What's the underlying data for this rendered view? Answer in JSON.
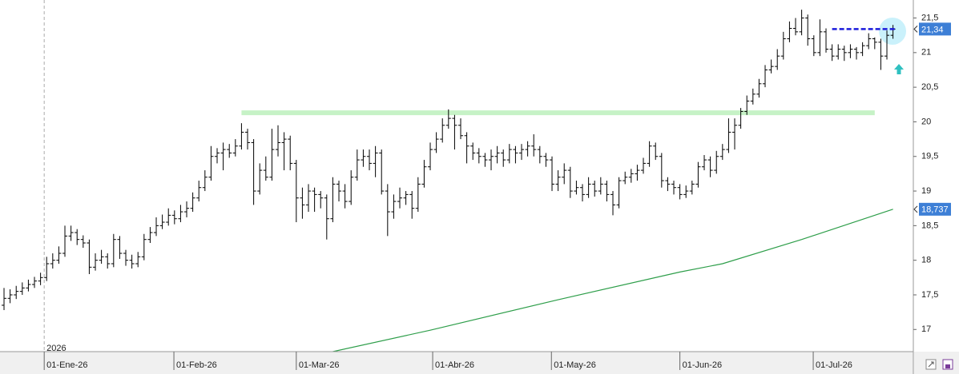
{
  "chart_data": {
    "type": "ohlc",
    "xlim": [
      -0.66,
      149.34
    ],
    "xticks": [
      {
        "value": 6.6,
        "label": "01-Ene-26"
      },
      {
        "value": 27.9,
        "label": "01-Feb-26"
      },
      {
        "value": 48,
        "label": "01-Mar-26"
      },
      {
        "value": 70.4,
        "label": "01-Abr-26"
      },
      {
        "value": 89.9,
        "label": "01-May-26"
      },
      {
        "value": 111,
        "label": "01-Jun-26"
      },
      {
        "value": 132.9,
        "label": "01-Jul-26"
      }
    ],
    "year_label": "2026",
    "ylim": [
      16.68,
      21.76
    ],
    "yticks": [
      17,
      {
        "value": 17.5,
        "label": "17,5"
      },
      18,
      {
        "value": 18.5,
        "label": "18,5"
      },
      19,
      {
        "value": 19.5,
        "label": "19,5"
      },
      20,
      {
        "value": 20.5,
        "label": "20,5"
      },
      21,
      {
        "value": 21.5,
        "label": "21,5"
      }
    ],
    "bar_color": "#000000",
    "bars": [
      [
        17.35,
        17.6,
        17.28,
        17.45
      ],
      [
        17.45,
        17.58,
        17.38,
        17.5
      ],
      [
        17.5,
        17.63,
        17.44,
        17.55
      ],
      [
        17.55,
        17.68,
        17.5,
        17.6
      ],
      [
        17.6,
        17.72,
        17.55,
        17.65
      ],
      [
        17.65,
        17.76,
        17.6,
        17.7
      ],
      [
        17.7,
        17.82,
        17.64,
        17.75
      ],
      [
        17.75,
        18.05,
        17.7,
        17.95
      ],
      [
        17.95,
        18.1,
        17.88,
        18.0
      ],
      [
        18.0,
        18.2,
        17.95,
        18.1
      ],
      [
        18.1,
        18.5,
        18.05,
        18.35
      ],
      [
        18.35,
        18.5,
        18.28,
        18.4
      ],
      [
        18.4,
        18.45,
        18.22,
        18.3
      ],
      [
        18.3,
        18.36,
        18.18,
        18.25
      ],
      [
        18.25,
        18.3,
        17.8,
        17.9
      ],
      [
        17.9,
        18.1,
        17.85,
        18.0
      ],
      [
        18.0,
        18.15,
        17.95,
        18.05
      ],
      [
        18.05,
        18.1,
        17.88,
        17.95
      ],
      [
        17.95,
        18.38,
        17.9,
        18.3
      ],
      [
        18.3,
        18.35,
        18.02,
        18.1
      ],
      [
        18.1,
        18.15,
        17.92,
        18.0
      ],
      [
        18.0,
        18.08,
        17.88,
        17.95
      ],
      [
        17.95,
        18.12,
        17.9,
        18.05
      ],
      [
        18.05,
        18.38,
        18.0,
        18.3
      ],
      [
        18.3,
        18.48,
        18.25,
        18.4
      ],
      [
        18.4,
        18.62,
        18.35,
        18.5
      ],
      [
        18.5,
        18.66,
        18.45,
        18.55
      ],
      [
        18.55,
        18.75,
        18.5,
        18.65
      ],
      [
        18.65,
        18.72,
        18.52,
        18.6
      ],
      [
        18.6,
        18.8,
        18.55,
        18.7
      ],
      [
        18.7,
        18.85,
        18.62,
        18.75
      ],
      [
        18.75,
        18.98,
        18.7,
        18.9
      ],
      [
        18.9,
        19.15,
        18.85,
        19.05
      ],
      [
        19.05,
        19.3,
        19.0,
        19.2
      ],
      [
        19.2,
        19.65,
        19.15,
        19.5
      ],
      [
        19.5,
        19.62,
        19.4,
        19.55
      ],
      [
        19.55,
        19.7,
        19.3,
        19.6
      ],
      [
        19.6,
        19.68,
        19.48,
        19.55
      ],
      [
        19.55,
        19.75,
        19.5,
        19.65
      ],
      [
        19.65,
        19.98,
        19.6,
        19.85
      ],
      [
        19.85,
        19.9,
        19.6,
        19.7
      ],
      [
        19.7,
        19.75,
        18.8,
        19.0
      ],
      [
        19.0,
        19.4,
        18.95,
        19.3
      ],
      [
        19.3,
        19.5,
        19.15,
        19.2
      ],
      [
        19.2,
        19.9,
        19.15,
        19.6
      ],
      [
        19.6,
        19.95,
        19.5,
        19.7
      ],
      [
        19.7,
        19.85,
        19.3,
        19.75
      ],
      [
        19.75,
        19.8,
        19.3,
        19.4
      ],
      [
        19.4,
        19.45,
        18.55,
        18.9
      ],
      [
        18.9,
        19.05,
        18.6,
        18.8
      ],
      [
        18.8,
        19.1,
        18.7,
        19.0
      ],
      [
        19.0,
        19.05,
        18.7,
        18.95
      ],
      [
        18.95,
        19.0,
        18.75,
        18.9
      ],
      [
        18.9,
        18.95,
        18.3,
        18.6
      ],
      [
        18.6,
        19.2,
        18.55,
        19.1
      ],
      [
        19.1,
        19.15,
        18.85,
        19.0
      ],
      [
        19.0,
        19.1,
        18.75,
        18.85
      ],
      [
        18.85,
        19.3,
        18.8,
        19.2
      ],
      [
        19.2,
        19.6,
        19.15,
        19.45
      ],
      [
        19.45,
        19.6,
        19.35,
        19.5
      ],
      [
        19.5,
        19.6,
        19.3,
        19.4
      ],
      [
        19.4,
        19.65,
        19.2,
        19.55
      ],
      [
        19.55,
        19.6,
        18.95,
        19.0
      ],
      [
        19.0,
        19.1,
        18.35,
        18.7
      ],
      [
        18.7,
        18.95,
        18.6,
        18.85
      ],
      [
        18.85,
        19.05,
        18.75,
        18.9
      ],
      [
        18.9,
        19.0,
        18.8,
        18.95
      ],
      [
        18.95,
        19.0,
        18.6,
        18.75
      ],
      [
        18.75,
        19.2,
        18.7,
        19.1
      ],
      [
        19.1,
        19.45,
        19.05,
        19.35
      ],
      [
        19.35,
        19.7,
        19.3,
        19.6
      ],
      [
        19.6,
        19.85,
        19.55,
        19.75
      ],
      [
        19.75,
        20.05,
        19.7,
        19.95
      ],
      [
        19.95,
        20.18,
        19.9,
        20.05
      ],
      [
        20.05,
        20.1,
        19.6,
        19.95
      ],
      [
        19.95,
        20.05,
        19.75,
        19.8
      ],
      [
        19.8,
        19.85,
        19.4,
        19.65
      ],
      [
        19.65,
        19.7,
        19.45,
        19.55
      ],
      [
        19.55,
        19.62,
        19.4,
        19.5
      ],
      [
        19.5,
        19.55,
        19.35,
        19.45
      ],
      [
        19.45,
        19.6,
        19.3,
        19.5
      ],
      [
        19.5,
        19.65,
        19.4,
        19.55
      ],
      [
        19.55,
        19.6,
        19.35,
        19.45
      ],
      [
        19.45,
        19.68,
        19.4,
        19.6
      ],
      [
        19.6,
        19.65,
        19.4,
        19.55
      ],
      [
        19.55,
        19.68,
        19.45,
        19.6
      ],
      [
        19.6,
        19.72,
        19.5,
        19.65
      ],
      [
        19.65,
        19.82,
        19.5,
        19.6
      ],
      [
        19.6,
        19.65,
        19.4,
        19.5
      ],
      [
        19.5,
        19.55,
        19.35,
        19.45
      ],
      [
        19.45,
        19.5,
        19.0,
        19.1
      ],
      [
        19.1,
        19.3,
        19.0,
        19.2
      ],
      [
        19.2,
        19.4,
        19.1,
        19.3
      ],
      [
        19.3,
        19.35,
        18.9,
        19.0
      ],
      [
        19.0,
        19.15,
        18.95,
        19.05
      ],
      [
        19.05,
        19.1,
        18.85,
        18.95
      ],
      [
        18.95,
        19.2,
        18.9,
        19.1
      ],
      [
        19.1,
        19.15,
        18.92,
        19.0
      ],
      [
        19.0,
        19.2,
        18.95,
        19.1
      ],
      [
        19.1,
        19.15,
        18.85,
        18.95
      ],
      [
        18.95,
        19.0,
        18.65,
        18.8
      ],
      [
        18.8,
        19.2,
        18.75,
        19.15
      ],
      [
        19.15,
        19.28,
        19.1,
        19.2
      ],
      [
        19.2,
        19.32,
        19.12,
        19.25
      ],
      [
        19.25,
        19.38,
        19.15,
        19.3
      ],
      [
        19.3,
        19.48,
        19.25,
        19.4
      ],
      [
        19.4,
        19.72,
        19.35,
        19.65
      ],
      [
        19.65,
        19.7,
        19.45,
        19.5
      ],
      [
        19.5,
        19.55,
        19.05,
        19.15
      ],
      [
        19.15,
        19.2,
        19.0,
        19.1
      ],
      [
        19.1,
        19.15,
        18.95,
        19.05
      ],
      [
        19.05,
        19.1,
        18.88,
        18.95
      ],
      [
        18.95,
        19.08,
        18.9,
        19.0
      ],
      [
        19.0,
        19.15,
        18.95,
        19.1
      ],
      [
        19.1,
        19.42,
        19.05,
        19.35
      ],
      [
        19.35,
        19.52,
        19.3,
        19.45
      ],
      [
        19.45,
        19.5,
        19.2,
        19.3
      ],
      [
        19.3,
        19.58,
        19.25,
        19.5
      ],
      [
        19.5,
        19.68,
        19.45,
        19.6
      ],
      [
        19.6,
        20.05,
        19.55,
        19.85
      ],
      [
        19.85,
        20.05,
        19.6,
        19.95
      ],
      [
        19.95,
        20.2,
        19.9,
        20.15
      ],
      [
        20.15,
        20.38,
        20.1,
        20.3
      ],
      [
        20.3,
        20.48,
        20.25,
        20.4
      ],
      [
        20.4,
        20.62,
        20.35,
        20.55
      ],
      [
        20.55,
        20.82,
        20.5,
        20.75
      ],
      [
        20.75,
        20.9,
        20.7,
        20.8
      ],
      [
        20.8,
        21.05,
        20.75,
        20.95
      ],
      [
        20.95,
        21.3,
        20.9,
        21.2
      ],
      [
        21.2,
        21.45,
        21.15,
        21.35
      ],
      [
        21.35,
        21.5,
        21.25,
        21.3
      ],
      [
        21.3,
        21.62,
        21.25,
        21.5
      ],
      [
        21.5,
        21.55,
        21.1,
        21.2
      ],
      [
        21.2,
        21.25,
        20.95,
        21.0
      ],
      [
        21.0,
        21.48,
        20.95,
        21.3
      ],
      [
        21.3,
        21.35,
        21.0,
        21.05
      ],
      [
        21.05,
        21.12,
        20.88,
        20.95
      ],
      [
        20.95,
        21.12,
        20.9,
        21.05
      ],
      [
        21.05,
        21.1,
        20.88,
        21.0
      ],
      [
        21.0,
        21.12,
        20.92,
        21.05
      ],
      [
        21.05,
        21.08,
        20.9,
        21.0
      ],
      [
        21.0,
        21.15,
        20.95,
        21.1
      ],
      [
        21.1,
        21.28,
        21.05,
        21.2
      ],
      [
        21.2,
        21.22,
        21.05,
        21.15
      ],
      [
        21.15,
        21.2,
        20.75,
        20.95
      ],
      [
        20.95,
        21.32,
        20.9,
        21.25
      ],
      [
        21.25,
        21.4,
        21.2,
        21.34
      ]
    ],
    "moving_average": {
      "color": "#2e9e4a",
      "x": [
        54,
        70,
        91,
        111,
        118,
        131,
        146
      ],
      "values": [
        16.68,
        16.99,
        17.43,
        17.83,
        17.95,
        18.3,
        18.737
      ],
      "value_label": "18,737"
    },
    "last_price": {
      "value": 21.34,
      "value_label": "21,34",
      "color": "#1a1adb"
    },
    "resistance": {
      "value": 20.13,
      "x": [
        39,
        143
      ],
      "color": "#c6f2c6"
    }
  }
}
